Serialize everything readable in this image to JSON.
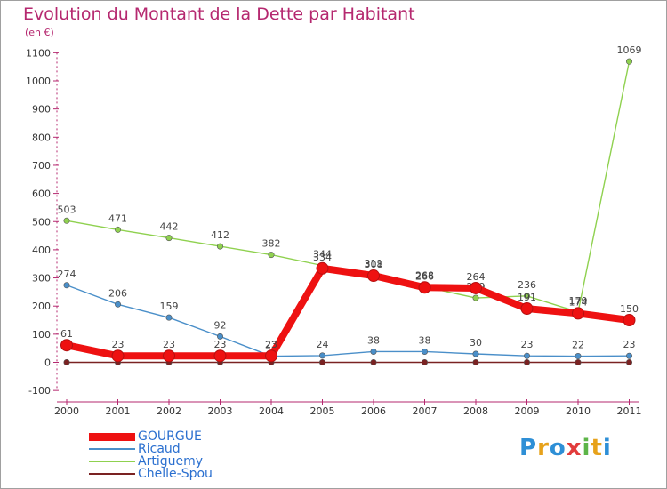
{
  "title": "Evolution du Montant de la Dette par Habitant",
  "subtitle": "(en €)",
  "brand": {
    "text": "Proxiti",
    "letters": [
      {
        "ch": "P",
        "color": "#2e8fd6"
      },
      {
        "ch": "r",
        "color": "#e7a21b"
      },
      {
        "ch": "o",
        "color": "#2e8fd6"
      },
      {
        "ch": "x",
        "color": "#e23c3c"
      },
      {
        "ch": "i",
        "color": "#5db548"
      },
      {
        "ch": "t",
        "color": "#e7a21b"
      },
      {
        "ch": "i",
        "color": "#2e8fd6"
      }
    ]
  },
  "chart_data": {
    "type": "line",
    "title": "Evolution du Montant de la Dette par Habitant",
    "subtitle": "(en €)",
    "xlabel": "",
    "ylabel": "",
    "x": [
      "2000",
      "2001",
      "2002",
      "2003",
      "2004",
      "2005",
      "2006",
      "2007",
      "2008",
      "2009",
      "2010",
      "2011"
    ],
    "ylim": [
      -100,
      1100
    ],
    "yticks": [
      -100,
      0,
      100,
      200,
      300,
      400,
      500,
      600,
      700,
      800,
      900,
      1000,
      1100
    ],
    "grid": false,
    "legend_position": "bottom-left",
    "series": [
      {
        "name": "Chelle-Spou",
        "color": "#7a2222",
        "values": [
          0,
          0,
          0,
          0,
          0,
          0,
          0,
          0,
          0,
          0,
          0,
          0
        ],
        "labels": [
          "",
          "",
          "",
          "",
          "",
          "",
          "",
          "",
          "",
          "",
          "",
          ""
        ]
      },
      {
        "name": "Ricaud",
        "color": "#4a8fc9",
        "values": [
          274,
          206,
          159,
          92,
          22,
          24,
          38,
          38,
          30,
          23,
          22,
          23
        ],
        "labels": [
          "274",
          "206",
          "159",
          "92",
          "22",
          "24",
          "38",
          "38",
          "30",
          "23",
          "22",
          "23"
        ]
      },
      {
        "name": "Artiguemy",
        "color": "#8fd14f",
        "values": [
          503,
          471,
          442,
          412,
          382,
          344,
          311,
          268,
          229,
          236,
          179,
          1069
        ],
        "labels": [
          "503",
          "471",
          "442",
          "412",
          "382",
          "344",
          "311",
          "268",
          "229",
          "236",
          "179",
          "1069"
        ]
      },
      {
        "name": "GOURGUE",
        "color": "#ee1111",
        "values": [
          61,
          23,
          23,
          23,
          23,
          334,
          308,
          266,
          264,
          191,
          174,
          150
        ],
        "labels": [
          "61",
          "23",
          "23",
          "23",
          "23",
          "334",
          "308",
          "266",
          "264",
          "191",
          "174",
          "150"
        ]
      }
    ],
    "legend": [
      "GOURGUE",
      "Ricaud",
      "Artiguemy",
      "Chelle-Spou"
    ]
  }
}
